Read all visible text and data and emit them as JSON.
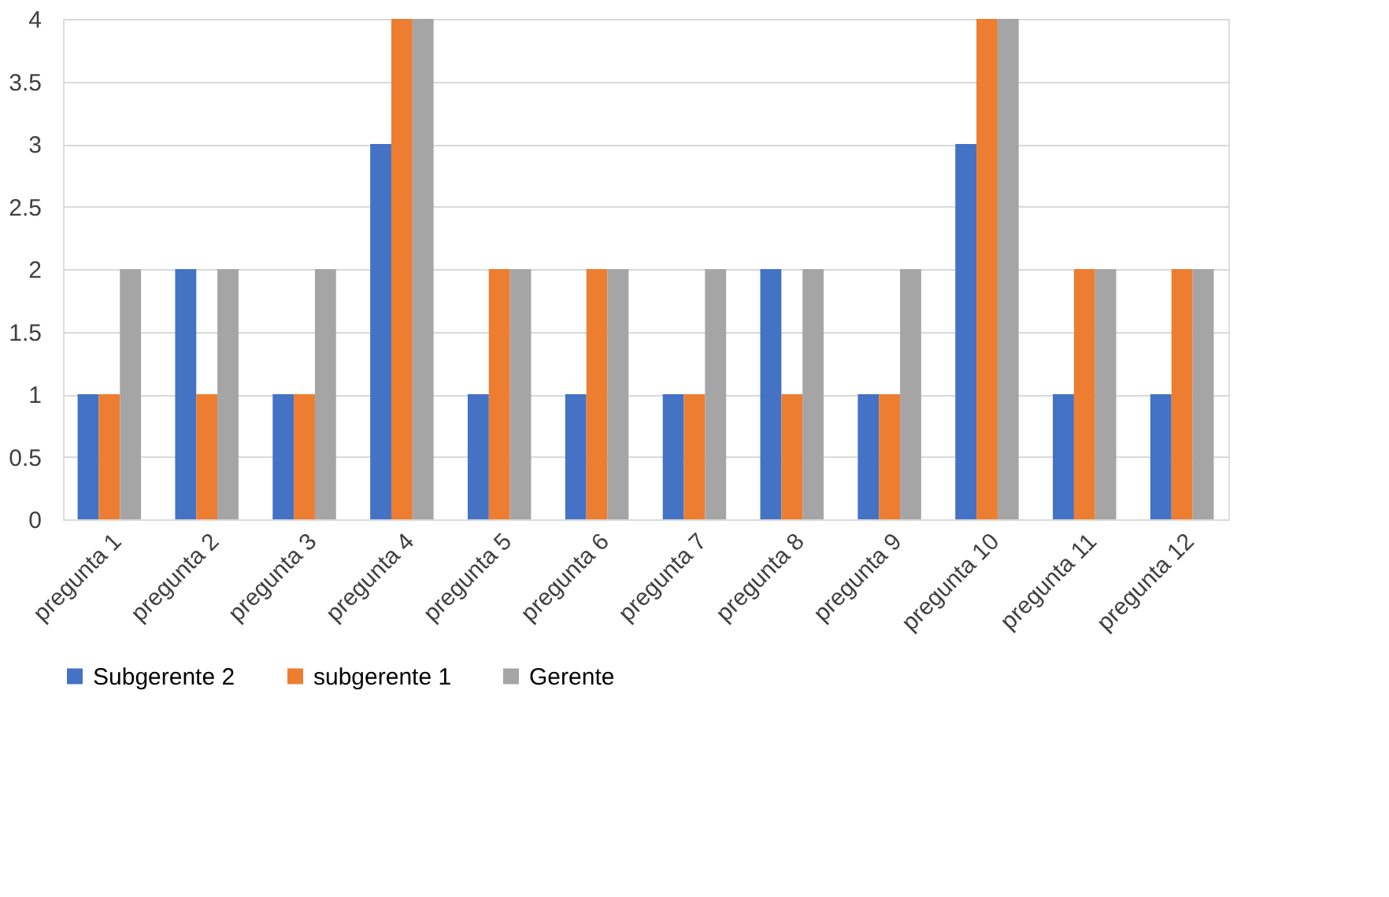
{
  "chart_data": {
    "type": "bar",
    "categories": [
      "pregunta 1",
      "pregunta 2",
      "pregunta 3",
      "pregunta 4",
      "pregunta 5",
      "pregunta 6",
      "pregunta 7",
      "pregunta 8",
      "pregunta 9",
      "pregunta 10",
      "pregunta 11",
      "pregunta 12"
    ],
    "series": [
      {
        "name": "Subgerente 2",
        "color": "#4472c4",
        "values": [
          1,
          2,
          1,
          3,
          1,
          1,
          1,
          2,
          1,
          3,
          1,
          1
        ]
      },
      {
        "name": "subgerente 1",
        "color": "#ed7d31",
        "values": [
          1,
          1,
          1,
          4,
          2,
          2,
          1,
          1,
          1,
          4,
          2,
          2
        ]
      },
      {
        "name": "Gerente",
        "color": "#a5a5a5",
        "values": [
          2,
          2,
          2,
          4,
          2,
          2,
          2,
          2,
          2,
          4,
          2,
          2
        ]
      }
    ],
    "ylim": [
      0,
      4
    ],
    "yticks": [
      0,
      0.5,
      1,
      1.5,
      2,
      2.5,
      3,
      3.5,
      4
    ],
    "grid": "y",
    "legend": "bottom"
  }
}
